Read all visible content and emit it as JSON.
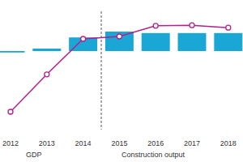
{
  "chart_data": {
    "type": "bar",
    "categories": [
      "2012",
      "2013",
      "2014",
      "2015",
      "2016",
      "2017",
      "2018"
    ],
    "series": [
      {
        "name": "GDP",
        "type": "bar",
        "color": "#1ba7d6",
        "values": [
          -0.3,
          0.5,
          2.8,
          4.0,
          3.7,
          3.7,
          3.7
        ]
      },
      {
        "name": "Construction output",
        "type": "line",
        "color": "#b0208f",
        "marker": "circle",
        "values": [
          -12.5,
          -4.8,
          2.5,
          3.0,
          5.2,
          5.3,
          4.8
        ]
      }
    ],
    "ylim": [
      -14.5,
      10.5
    ],
    "grid": false,
    "legend": "bottom",
    "tick_labels": "x"
  }
}
